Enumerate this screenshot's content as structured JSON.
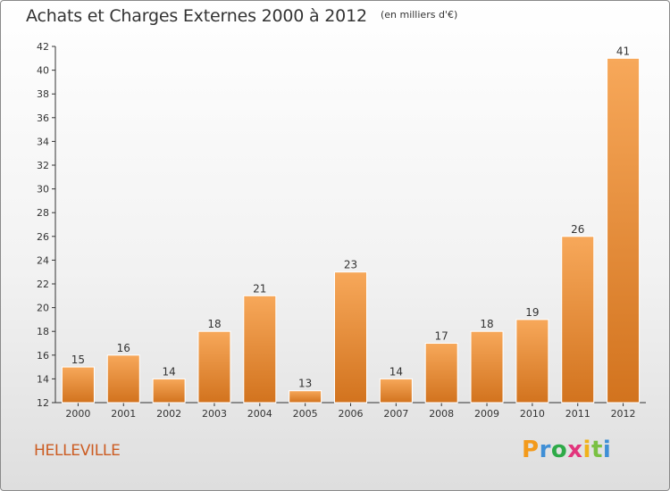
{
  "title": "Achats et Charges Externes 2000 à 2012",
  "unit_label": "(en milliers d'€)",
  "commune": "HELLEVILLE",
  "logo": {
    "text": "Proxiti",
    "letters": [
      "P",
      "r",
      "o",
      "x",
      "i",
      "t",
      "i"
    ]
  },
  "colors": {
    "bar_light": "#f7a85a",
    "bar_dark": "#d2731e",
    "axis": "#333333",
    "grid": "#dddddd",
    "commune": "#cc5c22"
  },
  "chart_data": {
    "type": "bar",
    "title": "Achats et Charges Externes 2000 à 2012",
    "xlabel": "",
    "ylabel": "",
    "categories": [
      "2000",
      "2001",
      "2002",
      "2003",
      "2004",
      "2005",
      "2006",
      "2007",
      "2008",
      "2009",
      "2010",
      "2011",
      "2012"
    ],
    "values": [
      15,
      16,
      14,
      18,
      21,
      13,
      23,
      14,
      17,
      18,
      19,
      26,
      41
    ],
    "ylim": [
      12,
      42
    ],
    "yticks": [
      "12",
      "14",
      "16",
      "18",
      "20",
      "22",
      "24",
      "26",
      "28",
      "30",
      "32",
      "34",
      "36",
      "38",
      "40",
      "42"
    ],
    "grid": false,
    "data_labels": true
  }
}
